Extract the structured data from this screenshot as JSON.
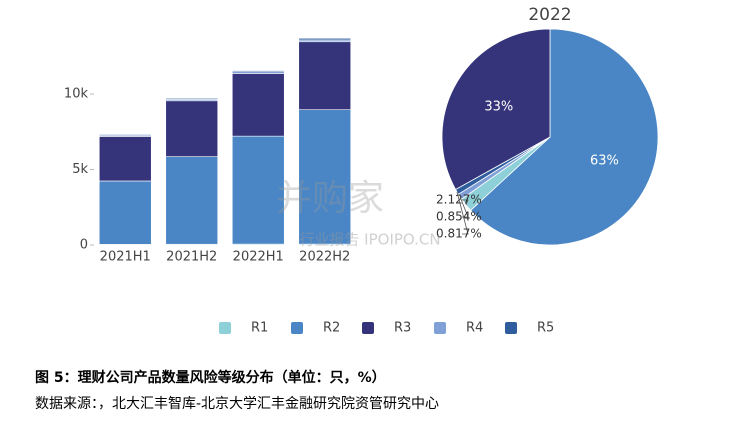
{
  "chart_data": [
    {
      "type": "bar",
      "stacked": true,
      "categories": [
        "2021H1",
        "2021H2",
        "2022H1",
        "2022H2"
      ],
      "series": [
        {
          "name": "R1",
          "color": "#8dd0d8",
          "values": [
            40,
            50,
            60,
            60
          ]
        },
        {
          "name": "R2",
          "color": "#4a86c5",
          "values": [
            4200,
            5800,
            7150,
            8900
          ]
        },
        {
          "name": "R3",
          "color": "#35347a",
          "values": [
            2950,
            3700,
            4150,
            4500
          ]
        },
        {
          "name": "R4",
          "color": "#7f9fd6",
          "values": [
            80,
            100,
            120,
            120
          ]
        },
        {
          "name": "R5",
          "color": "#2f5d9e",
          "values": [
            50,
            60,
            70,
            110
          ]
        }
      ],
      "ylim": [
        0,
        15000
      ],
      "yticks": [
        0,
        {
          "value": 5000,
          "label": "5k"
        },
        {
          "value": 10000,
          "label": "10k"
        }
      ]
    },
    {
      "type": "pie",
      "title": "2022",
      "categories": [
        "R1",
        "R2",
        "R3",
        "R4",
        "R5"
      ],
      "colors": [
        "#8dd0d8",
        "#4a86c5",
        "#35347a",
        "#7f9fd6",
        "#2f5d9e"
      ],
      "values": [
        2.127,
        63,
        33,
        0.854,
        0.817
      ],
      "value_labels": [
        "2.127%",
        "63%",
        "33%",
        "0.854%",
        "0.817%"
      ]
    }
  ],
  "watermark": [
    "并购家",
    "行业报告 IPOIPO.CN"
  ],
  "caption": "图 5：理财公司产品数量风险等级分布（单位：只，%）",
  "source": "数据来源：，北大汇丰智库-北京大学汇丰金融研究院资管研究中心"
}
